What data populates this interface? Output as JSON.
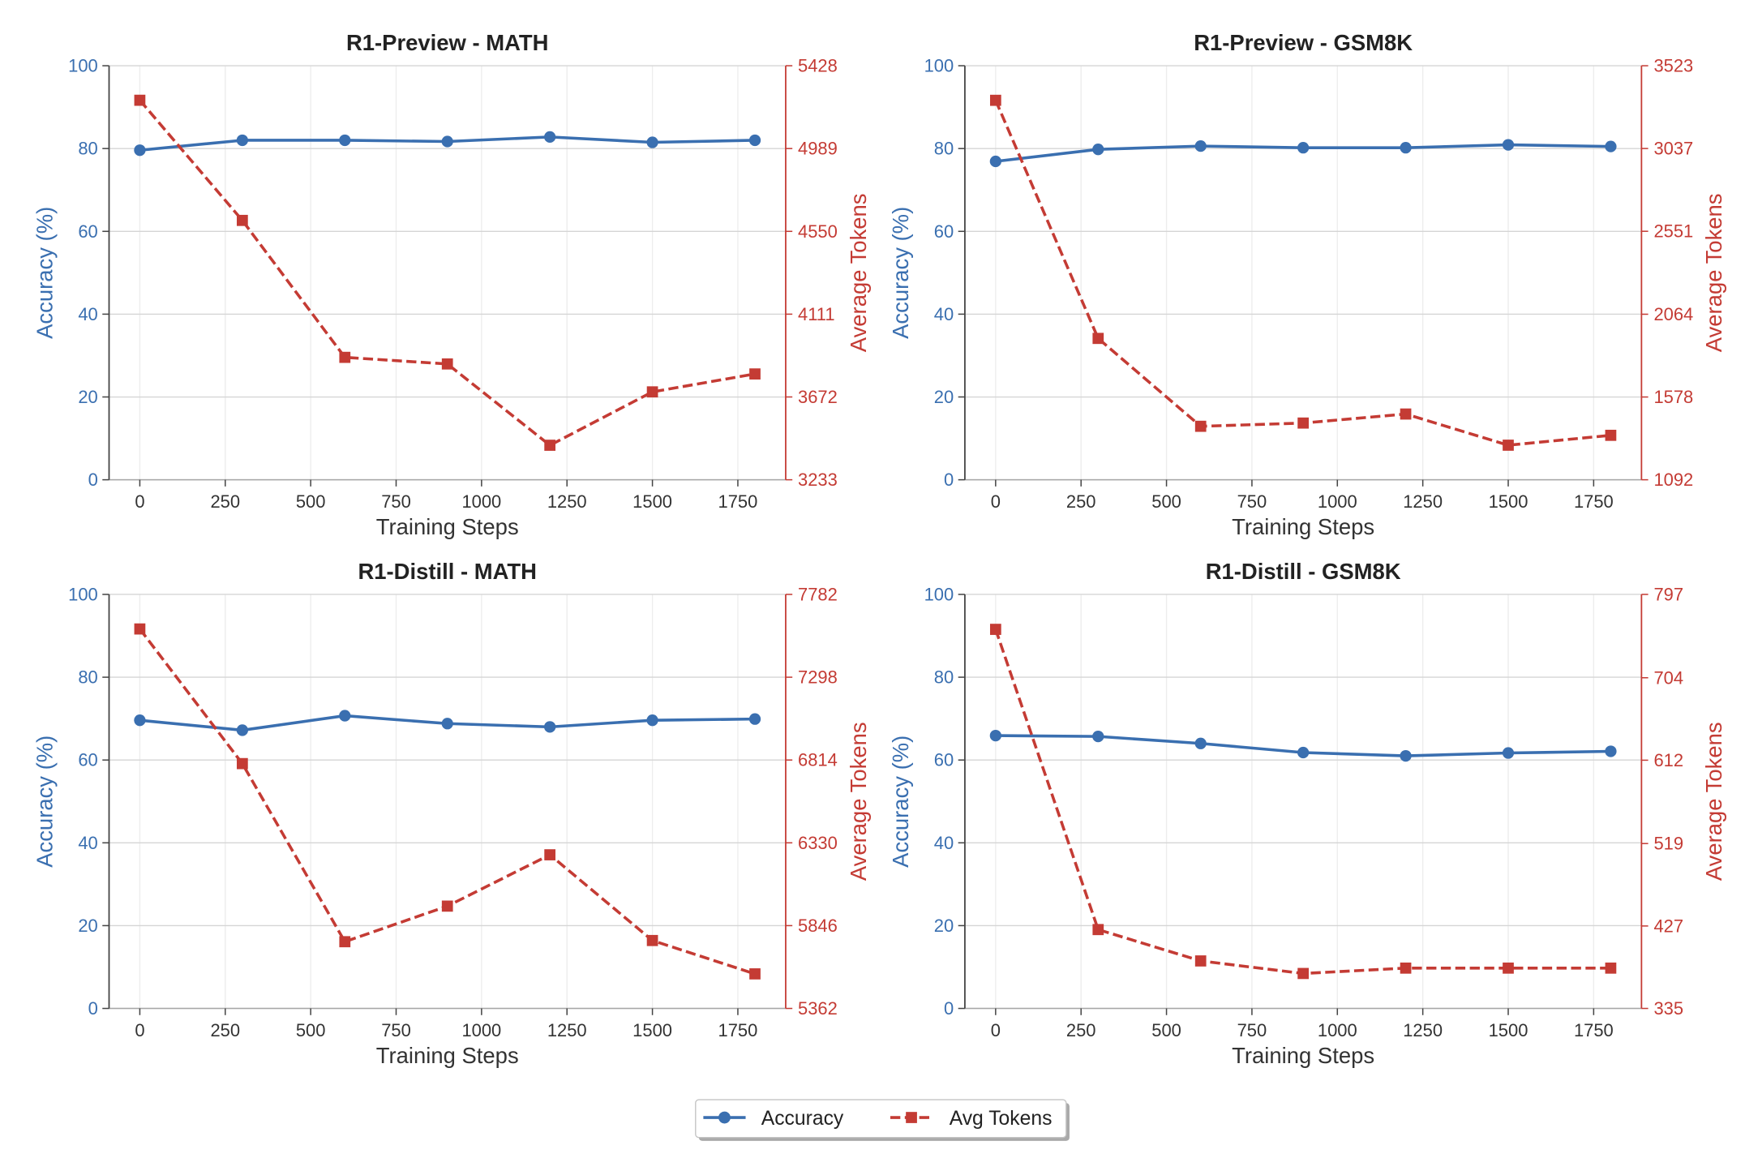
{
  "colors": {
    "accuracy": "#3a6fb0",
    "avg_tokens": "#c43b34",
    "grid": "#d5d5d5",
    "grid_vertical": "#ededed",
    "axis": "#444444",
    "axis_light": "#a6a6a6",
    "background": "#ffffff"
  },
  "legend": {
    "placement": "bottom-center"
  },
  "chart_data": [
    {
      "type": "line",
      "title": "R1-Preview - MATH",
      "xlabel": "Training Steps",
      "ylabel": "Accuracy (%)",
      "y2label": "Average Tokens",
      "x": [
        0,
        300,
        600,
        900,
        1200,
        1500,
        1800
      ],
      "xticks": [
        0,
        250,
        500,
        750,
        1000,
        1250,
        1500,
        1750
      ],
      "xlim": [
        -90,
        1890
      ],
      "ylim": [
        0,
        100
      ],
      "yticks": [
        0,
        20,
        40,
        60,
        80,
        100
      ],
      "y2lim": [
        3233,
        5428
      ],
      "y2ticks": [
        3233,
        3672,
        4111,
        4550,
        4989,
        5428
      ],
      "grid": true,
      "series": [
        {
          "name": "Accuracy",
          "color": "#3a6fb0",
          "values": [
            79.6,
            82.0,
            82.0,
            81.7,
            82.8,
            81.5,
            82.0
          ]
        },
        {
          "name": "Avg Tokens",
          "color": "#c43b34",
          "values": [
            5245,
            4608,
            3882,
            3847,
            3416,
            3699,
            3794
          ]
        }
      ]
    },
    {
      "type": "line",
      "title": "R1-Preview - GSM8K",
      "xlabel": "Training Steps",
      "ylabel": "Accuracy (%)",
      "y2label": "Average Tokens",
      "x": [
        0,
        300,
        600,
        900,
        1200,
        1500,
        1800
      ],
      "xticks": [
        0,
        250,
        500,
        750,
        1000,
        1250,
        1500,
        1750
      ],
      "xlim": [
        -90,
        1890
      ],
      "ylim": [
        0,
        100
      ],
      "yticks": [
        0,
        20,
        40,
        60,
        80,
        100
      ],
      "y2lim": [
        1092,
        3523
      ],
      "y2ticks": [
        1092,
        1578,
        2064,
        2551,
        3037,
        3523
      ],
      "grid": true,
      "series": [
        {
          "name": "Accuracy",
          "color": "#3a6fb0",
          "values": [
            76.9,
            79.8,
            80.6,
            80.2,
            80.2,
            80.9,
            80.5
          ]
        },
        {
          "name": "Avg Tokens",
          "color": "#c43b34",
          "values": [
            3320,
            1922,
            1406,
            1425,
            1478,
            1295,
            1353
          ]
        }
      ]
    },
    {
      "type": "line",
      "title": "R1-Distill - MATH",
      "xlabel": "Training Steps",
      "ylabel": "Accuracy (%)",
      "y2label": "Average Tokens",
      "x": [
        0,
        300,
        600,
        900,
        1200,
        1500,
        1800
      ],
      "xticks": [
        0,
        250,
        500,
        750,
        1000,
        1250,
        1500,
        1750
      ],
      "xlim": [
        -90,
        1890
      ],
      "ylim": [
        0,
        100
      ],
      "yticks": [
        0,
        20,
        40,
        60,
        80,
        100
      ],
      "y2lim": [
        5362,
        7782
      ],
      "y2ticks": [
        5362,
        5846,
        6330,
        6814,
        7298,
        7782
      ],
      "grid": true,
      "series": [
        {
          "name": "Accuracy",
          "color": "#3a6fb0",
          "values": [
            69.6,
            67.2,
            70.7,
            68.8,
            68.0,
            69.6,
            69.9
          ]
        },
        {
          "name": "Avg Tokens",
          "color": "#c43b34",
          "values": [
            7580,
            6793,
            5752,
            5960,
            6260,
            5759,
            5564
          ]
        }
      ]
    },
    {
      "type": "line",
      "title": "R1-Distill - GSM8K",
      "xlabel": "Training Steps",
      "ylabel": "Accuracy (%)",
      "y2label": "Average Tokens",
      "x": [
        0,
        300,
        600,
        900,
        1200,
        1500,
        1800
      ],
      "xticks": [
        0,
        250,
        500,
        750,
        1000,
        1250,
        1500,
        1750
      ],
      "xlim": [
        -90,
        1890
      ],
      "ylim": [
        0,
        100
      ],
      "yticks": [
        0,
        20,
        40,
        60,
        80,
        100
      ],
      "y2lim": [
        335,
        797
      ],
      "y2ticks": [
        335,
        427,
        519,
        612,
        704,
        797
      ],
      "grid": true,
      "series": [
        {
          "name": "Accuracy",
          "color": "#3a6fb0",
          "values": [
            65.9,
            65.7,
            64.0,
            61.8,
            61.0,
            61.7,
            62.1
          ]
        },
        {
          "name": "Avg Tokens",
          "color": "#c43b34",
          "values": [
            758,
            423,
            388,
            374,
            380,
            380,
            380
          ]
        }
      ]
    }
  ]
}
